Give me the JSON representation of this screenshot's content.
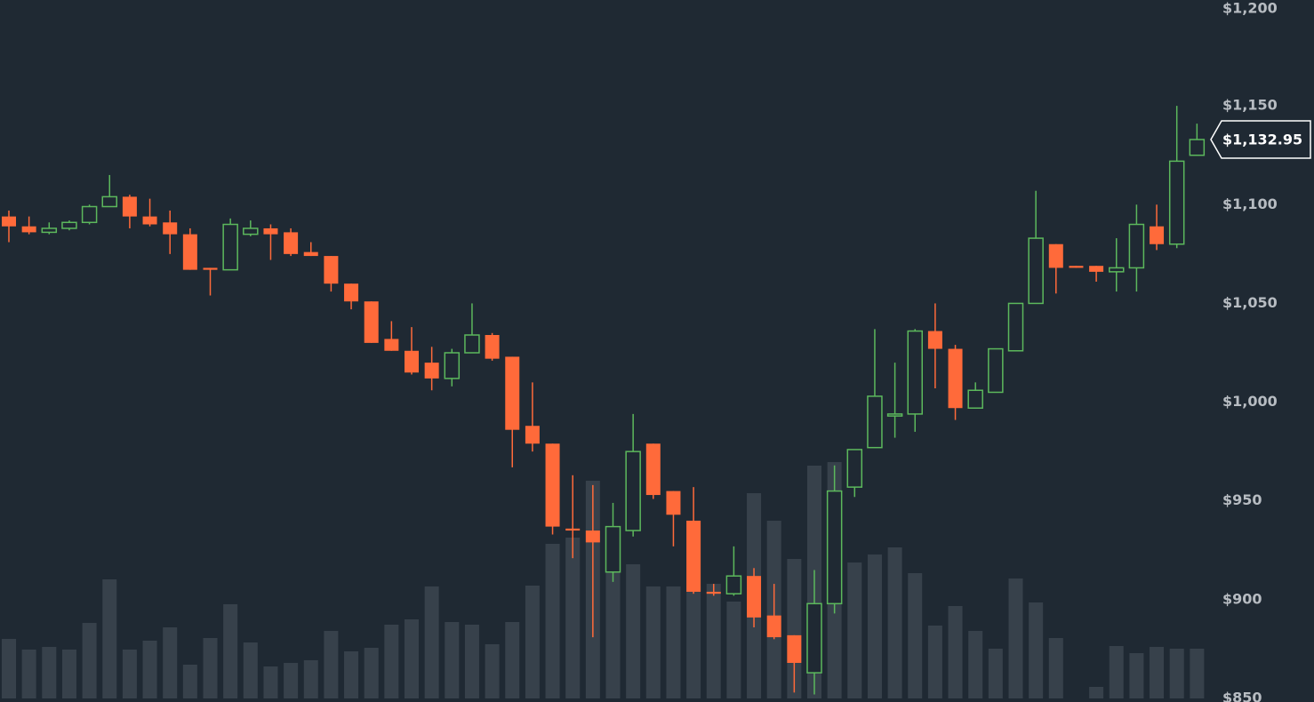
{
  "chart_data": {
    "type": "candlestick",
    "open": [
      1094,
      1089,
      1086,
      1088,
      1091,
      1099,
      1104,
      1094,
      1091,
      1085,
      1068,
      1067,
      1085,
      1088,
      1086,
      1076,
      1074,
      1060,
      1051,
      1032,
      1026,
      1020,
      1012,
      1025,
      1034,
      1023,
      988,
      979,
      936,
      935,
      914,
      935,
      979,
      955,
      940,
      904,
      903,
      912,
      892,
      882,
      863,
      898,
      957,
      977,
      993,
      994,
      1036,
      1027,
      997,
      1005,
      1026,
      1050,
      1080,
      1069,
      1069,
      1066,
      1068,
      1089,
      1080,
      1125
    ],
    "high": [
      1097,
      1094,
      1091,
      1092,
      1100,
      1115,
      1105,
      1103,
      1097,
      1088,
      1068,
      1093,
      1092,
      1090,
      1088,
      1081,
      1074,
      1060,
      1051,
      1041,
      1038,
      1028,
      1027,
      1050,
      1035,
      1023,
      1010,
      979,
      963,
      958,
      949,
      994,
      979,
      955,
      957,
      908,
      927,
      916,
      908,
      882,
      915,
      968,
      976,
      1037,
      1020,
      1037,
      1050,
      1029,
      1010,
      1027,
      1050,
      1107,
      1080,
      1069,
      1069,
      1083,
      1100,
      1100,
      1150,
      1141
    ],
    "low": [
      1081,
      1085,
      1085,
      1087,
      1090,
      1099,
      1088,
      1089,
      1075,
      1067,
      1054,
      1067,
      1084,
      1072,
      1074,
      1074,
      1056,
      1047,
      1030,
      1026,
      1014,
      1006,
      1008,
      1025,
      1021,
      967,
      975,
      933,
      921,
      881,
      909,
      932,
      951,
      927,
      903,
      902,
      902,
      886,
      880,
      853,
      852,
      893,
      952,
      977,
      982,
      985,
      1007,
      991,
      997,
      1005,
      1026,
      1050,
      1055,
      1068,
      1061,
      1056,
      1056,
      1077,
      1078,
      1125
    ],
    "close": [
      1089,
      1086,
      1088,
      1091,
      1099,
      1104,
      1094,
      1090,
      1085,
      1067,
      1067,
      1090,
      1088,
      1085,
      1075,
      1074,
      1060,
      1051,
      1030,
      1026,
      1015,
      1012,
      1025,
      1034,
      1022,
      986,
      979,
      937,
      935,
      929,
      937,
      975,
      953,
      943,
      904,
      903,
      912,
      891,
      881,
      868,
      898,
      955,
      976,
      1003,
      994,
      1036,
      1027,
      997,
      1006,
      1027,
      1050,
      1083,
      1068,
      1068,
      1066,
      1068,
      1090,
      1080,
      1122,
      1132.95
    ],
    "volume": [
      67,
      55,
      58,
      55,
      85,
      134,
      55,
      65,
      80,
      38,
      68,
      106,
      63,
      36,
      40,
      43,
      76,
      53,
      57,
      83,
      89,
      126,
      86,
      83,
      61,
      86,
      127,
      174,
      181,
      245,
      169,
      151,
      126,
      126,
      126,
      129,
      109,
      231,
      200,
      157,
      262,
      266,
      153,
      162,
      170,
      141,
      82,
      104,
      76,
      56,
      135,
      108,
      68,
      0,
      13,
      59,
      51,
      58,
      56,
      56
    ],
    "up_color": "#5cb85c",
    "down_color": "#ff6a3a",
    "volume_color": "#37414b",
    "ylim": [
      850,
      1200
    ],
    "yticks": [
      {
        "value": 850,
        "label": "$850"
      },
      {
        "value": 900,
        "label": "$900"
      },
      {
        "value": 950,
        "label": "$950"
      },
      {
        "value": 1000,
        "label": "$1,000"
      },
      {
        "value": 1050,
        "label": "$1,050"
      },
      {
        "value": 1100,
        "label": "$1,100"
      },
      {
        "value": 1150,
        "label": "$1,150"
      },
      {
        "value": 1200,
        "label": "$1,200"
      }
    ],
    "last_price": {
      "value": 1132.95,
      "label": "$1,132.95"
    }
  }
}
